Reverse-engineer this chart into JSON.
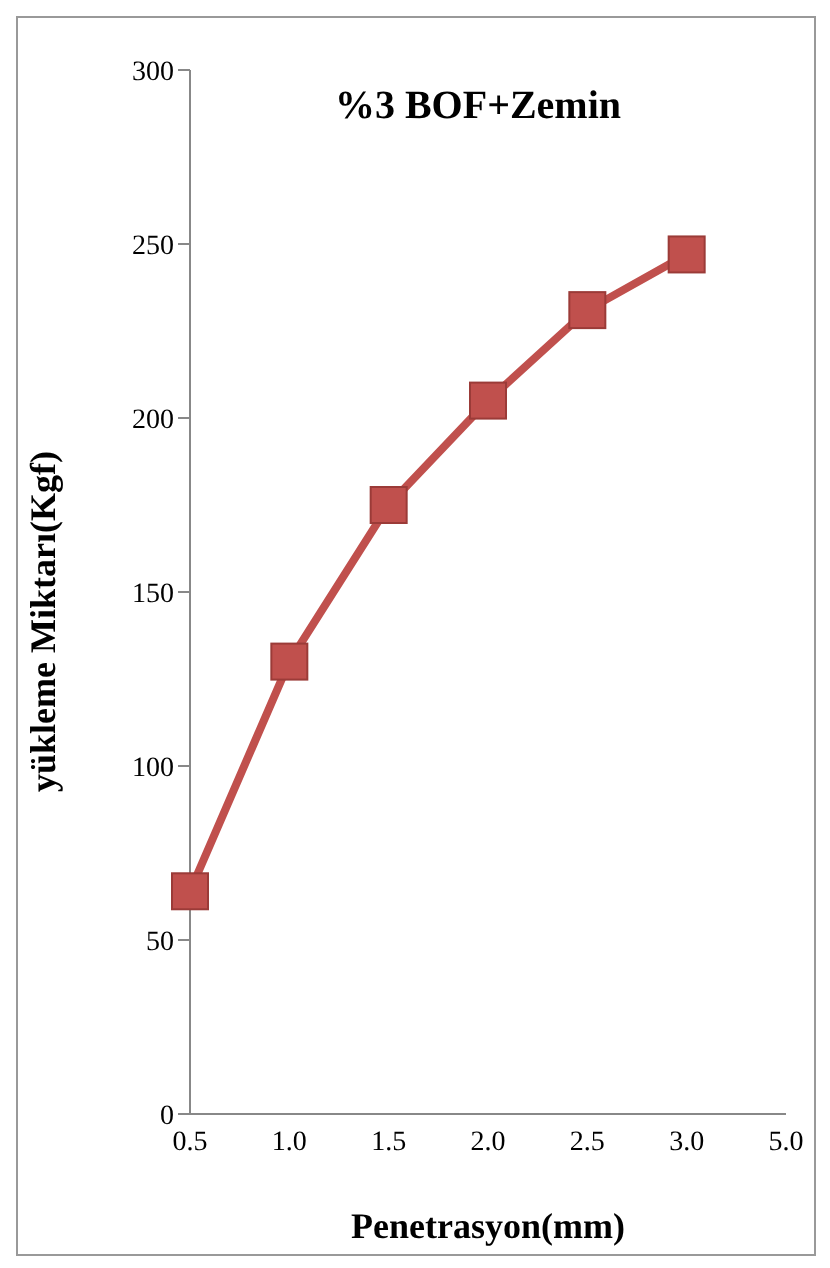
{
  "chart_data": {
    "type": "line",
    "title": "%3 BOF+Zemin",
    "xlabel": "Penetrasyon(mm)",
    "ylabel": "yükleme Miktarı(Kgf)",
    "categories": [
      "0.5",
      "1.0",
      "1.5",
      "2.0",
      "2.5",
      "3.0",
      "5.0"
    ],
    "series": [
      {
        "color": "#c0504d",
        "values": [
          64,
          130,
          175,
          205,
          231,
          247,
          null
        ]
      }
    ],
    "ylim": [
      0,
      300
    ],
    "yticks": [
      0,
      50,
      100,
      150,
      200,
      250,
      300
    ],
    "grid": false,
    "legend": false,
    "marker": "square",
    "line_style": "solid"
  }
}
